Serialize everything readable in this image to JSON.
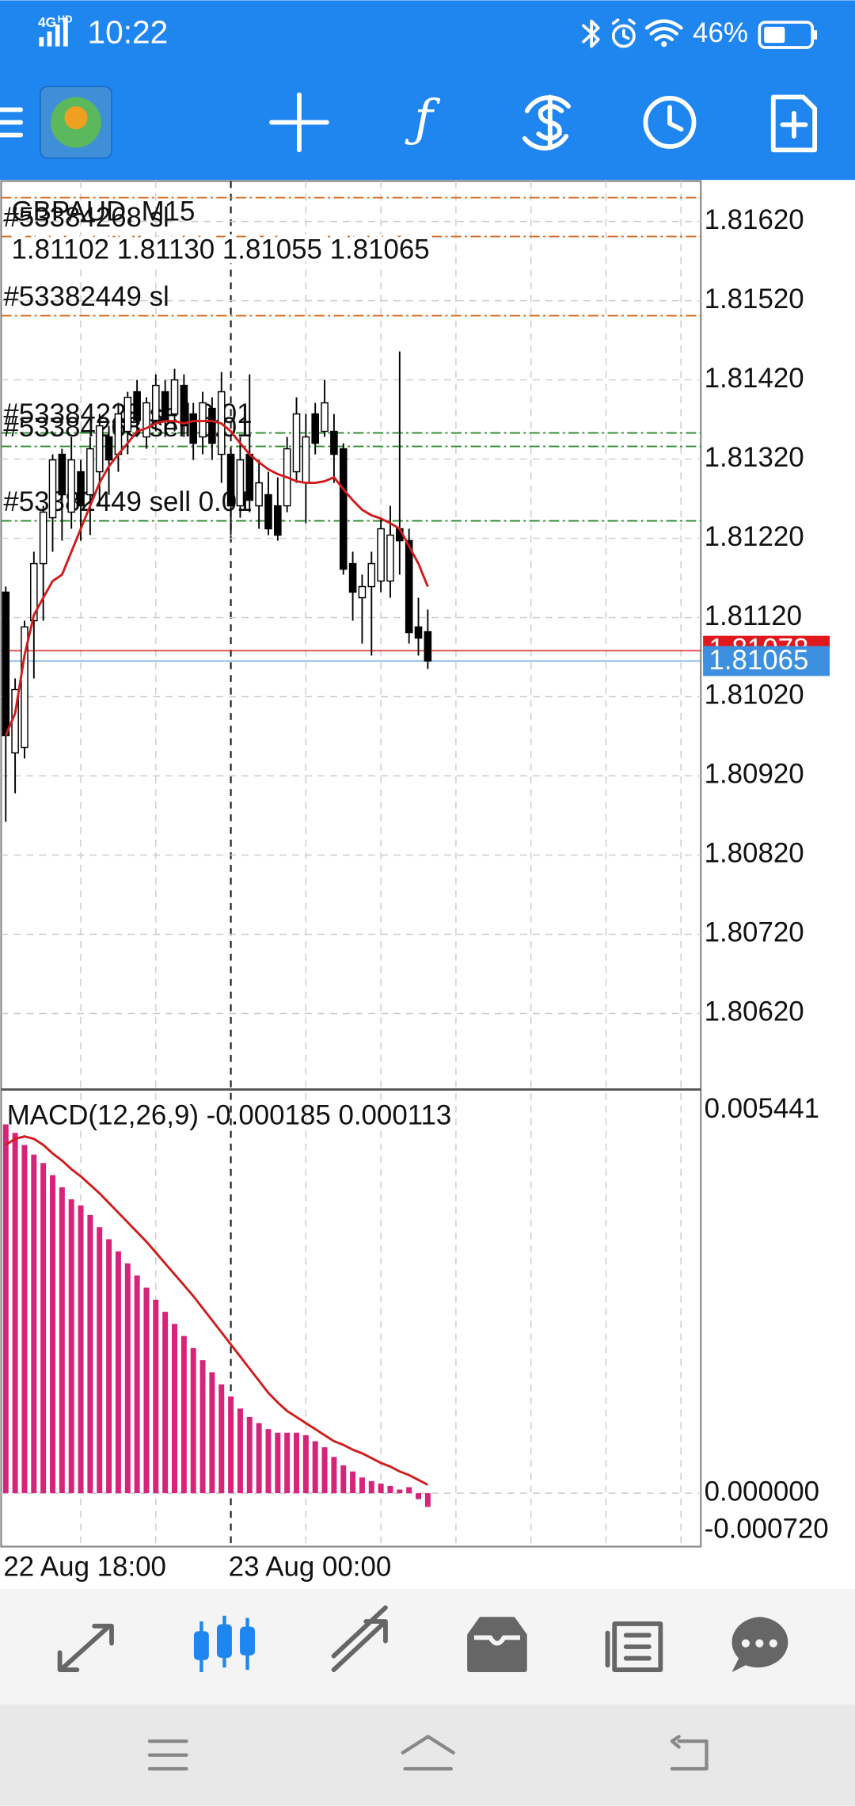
{
  "status_bar": {
    "network": "4G",
    "network_sub": "HD",
    "time": "10:22",
    "battery": "46%"
  },
  "chart_data": [
    {
      "type": "candlestick",
      "title": "GBPAUD, M15",
      "info": "1.81102 1.81130 1.81055 1.81065",
      "categories": [
        "22 Aug 18:00",
        null,
        null,
        null,
        null,
        null,
        null,
        null,
        null,
        null,
        null,
        null,
        null,
        null,
        null,
        null,
        null,
        null,
        null,
        null,
        null,
        null,
        null,
        null,
        "23 Aug 00:00",
        null,
        null,
        null,
        null,
        null,
        null,
        null,
        null,
        null,
        null,
        null,
        null,
        null,
        null,
        null,
        null,
        null,
        null,
        null,
        null,
        null
      ],
      "open": [
        1.81152,
        1.80949,
        1.80956,
        1.81116,
        1.81188,
        1.81246,
        1.81326,
        1.81253,
        1.81304,
        1.81275,
        1.81304,
        1.81348,
        1.81326,
        1.81355,
        1.81405,
        1.81348,
        1.81369,
        1.81405,
        1.81377,
        1.81413,
        1.81377,
        1.81348,
        1.81384,
        1.81326,
        1.81326,
        1.81261,
        1.81326,
        1.81261,
        1.81275,
        1.81261,
        1.81261,
        1.81304,
        1.8129,
        1.81377,
        1.81355,
        1.81355,
        1.81333,
        1.81188,
        1.81145,
        1.81159,
        1.81166,
        1.81166,
        1.81232,
        1.81217,
        1.81108,
        1.81102
      ],
      "high": [
        1.81159,
        1.81043,
        1.81116,
        1.81203,
        1.81261,
        1.81326,
        1.81333,
        1.81348,
        1.81319,
        1.81348,
        1.81377,
        1.81362,
        1.81391,
        1.81405,
        1.8142,
        1.81398,
        1.81427,
        1.8142,
        1.81434,
        1.81427,
        1.81391,
        1.81405,
        1.81398,
        1.8143,
        1.81333,
        1.81348,
        1.81427,
        1.81319,
        1.81304,
        1.81297,
        1.81348,
        1.81398,
        1.81377,
        1.81391,
        1.8142,
        1.81377,
        1.8134,
        1.81203,
        1.81174,
        1.81203,
        1.81246,
        1.81261,
        1.81456,
        1.81232,
        1.81145,
        1.8113
      ],
      "low": [
        1.80862,
        1.80898,
        1.80942,
        1.81043,
        1.81116,
        1.81203,
        1.81217,
        1.81232,
        1.81217,
        1.81224,
        1.81261,
        1.81275,
        1.81304,
        1.81326,
        1.81348,
        1.81333,
        1.81355,
        1.81348,
        1.81355,
        1.81348,
        1.81319,
        1.81326,
        1.81319,
        1.8129,
        1.81224,
        1.81246,
        1.81253,
        1.81232,
        1.81224,
        1.81217,
        1.81253,
        1.8129,
        1.81239,
        1.81326,
        1.81348,
        1.8129,
        1.81174,
        1.81116,
        1.81087,
        1.81072,
        1.81152,
        1.81145,
        1.81174,
        1.81087,
        1.81072,
        1.81055
      ],
      "close": [
        1.80971,
        1.81029,
        1.81108,
        1.81188,
        1.81253,
        1.81319,
        1.81275,
        1.81319,
        1.81261,
        1.81333,
        1.81362,
        1.81319,
        1.81377,
        1.81398,
        1.81369,
        1.81391,
        1.81413,
        1.81369,
        1.8142,
        1.81362,
        1.8134,
        1.81391,
        1.8134,
        1.81405,
        1.81261,
        1.81319,
        1.81268,
        1.8129,
        1.81232,
        1.81224,
        1.81333,
        1.81377,
        1.81348,
        1.8134,
        1.81391,
        1.81326,
        1.81181,
        1.81152,
        1.81159,
        1.81188,
        1.81232,
        1.81224,
        1.81217,
        1.81101,
        1.81094,
        1.81065
      ],
      "up_color": "#ffffff",
      "down_color": "#000000",
      "ma": {
        "color": "#d01c1c",
        "values": [
          1.80971,
          1.80999,
          1.81072,
          1.81123,
          1.81145,
          1.81166,
          1.81174,
          1.81203,
          1.81232,
          1.81261,
          1.8129,
          1.81311,
          1.81326,
          1.8134,
          1.81355,
          1.81359,
          1.81365,
          1.81368,
          1.81368,
          1.81365,
          1.81368,
          1.81368,
          1.81368,
          1.81365,
          1.81355,
          1.8134,
          1.81326,
          1.81316,
          1.81307,
          1.81301,
          1.81297,
          1.81292,
          1.8129,
          1.8129,
          1.81292,
          1.81297,
          1.81282,
          1.81268,
          1.81256,
          1.81249,
          1.81245,
          1.81239,
          1.81232,
          1.8121,
          1.81188,
          1.81159
        ]
      },
      "ylim": [
        1.80524,
        1.81671
      ],
      "yticks": [
        {
          "value": 1.8162,
          "label": "1.81620"
        },
        {
          "value": 1.8152,
          "label": "1.81520"
        },
        {
          "value": 1.8142,
          "label": "1.81420"
        },
        {
          "value": 1.8132,
          "label": "1.81320"
        },
        {
          "value": 1.8122,
          "label": "1.81220"
        },
        {
          "value": 1.8112,
          "label": "1.81120"
        },
        {
          "value": 1.8102,
          "label": "1.81020"
        },
        {
          "value": 1.8092,
          "label": "1.80920"
        },
        {
          "value": 1.8082,
          "label": "1.80820"
        },
        {
          "value": 1.8072,
          "label": "1.80720"
        },
        {
          "value": 1.8062,
          "label": "1.80620"
        }
      ],
      "grid": true,
      "order_lines": [
        {
          "label": "#53384268 sl",
          "value": 1.8165,
          "color": "#d2691e"
        },
        {
          "value": 1.81601,
          "color": "#d2691e"
        },
        {
          "label": "#53382449 sl",
          "value": 1.81501,
          "color": "#d2691e"
        },
        {
          "label": "#53384228 sell 0.01",
          "value": 1.81353,
          "color": "#2a8a2a"
        },
        {
          "label": "#53384268 sell 0.01",
          "value": 1.81336,
          "color": "#2a8a2a"
        },
        {
          "label": "#53382449 sell 0.01",
          "value": 1.81242,
          "color": "#2a8a2a"
        }
      ],
      "ask": {
        "value": 1.81078,
        "color": "#e0191e"
      },
      "bid": {
        "value": 1.81065,
        "color": "#3d8fe0"
      }
    },
    {
      "type": "macd",
      "title": "MACD(12,26,9) -0.000185 0.000113",
      "series": [
        {
          "kind": "histogram",
          "color": "#d6247a",
          "values": [
            0.004971,
            0.004857,
            0.004694,
            0.004564,
            0.00445,
            0.004287,
            0.004124,
            0.003961,
            0.003879,
            0.003749,
            0.003586,
            0.003423,
            0.00326,
            0.003097,
            0.002934,
            0.002771,
            0.002608,
            0.002445,
            0.002282,
            0.002119,
            0.001956,
            0.001793,
            0.00163,
            0.001467,
            0.001304,
            0.001141,
            0.001027,
            0.000945,
            0.000864,
            0.000815,
            0.000815,
            0.000815,
            0.000782,
            0.000701,
            0.000619,
            0.000489,
            0.000375,
            0.000293,
            0.000212,
            0.000163,
            0.00013,
            9.8e-05,
            4.9e-05,
            8.1e-05,
            -8e-05,
            -0.000185
          ]
        },
        {
          "kind": "line",
          "color": "#d01c1c",
          "values": [
            0.004694,
            0.004776,
            0.004809,
            0.004776,
            0.004694,
            0.00458,
            0.004483,
            0.004368,
            0.004271,
            0.004157,
            0.004042,
            0.003912,
            0.003782,
            0.003651,
            0.003521,
            0.00339,
            0.003244,
            0.003097,
            0.00295,
            0.002804,
            0.002657,
            0.002494,
            0.002331,
            0.002168,
            0.002005,
            0.001842,
            0.001679,
            0.001516,
            0.001353,
            0.001223,
            0.001108,
            0.001027,
            0.000945,
            0.000864,
            0.000782,
            0.000701,
            0.000652,
            0.000587,
            0.000538,
            0.000473,
            0.000408,
            0.000359,
            0.000293,
            0.000245,
            0.000179,
            0.000113
          ]
        }
      ],
      "ylim": [
        -0.00072,
        0.005441
      ],
      "yticks": [
        0.005441,
        {
          "value": 0,
          "label": "0.000000"
        },
        {
          "value": -0.00072,
          "label": "-0.000720"
        }
      ],
      "grid": true
    }
  ]
}
